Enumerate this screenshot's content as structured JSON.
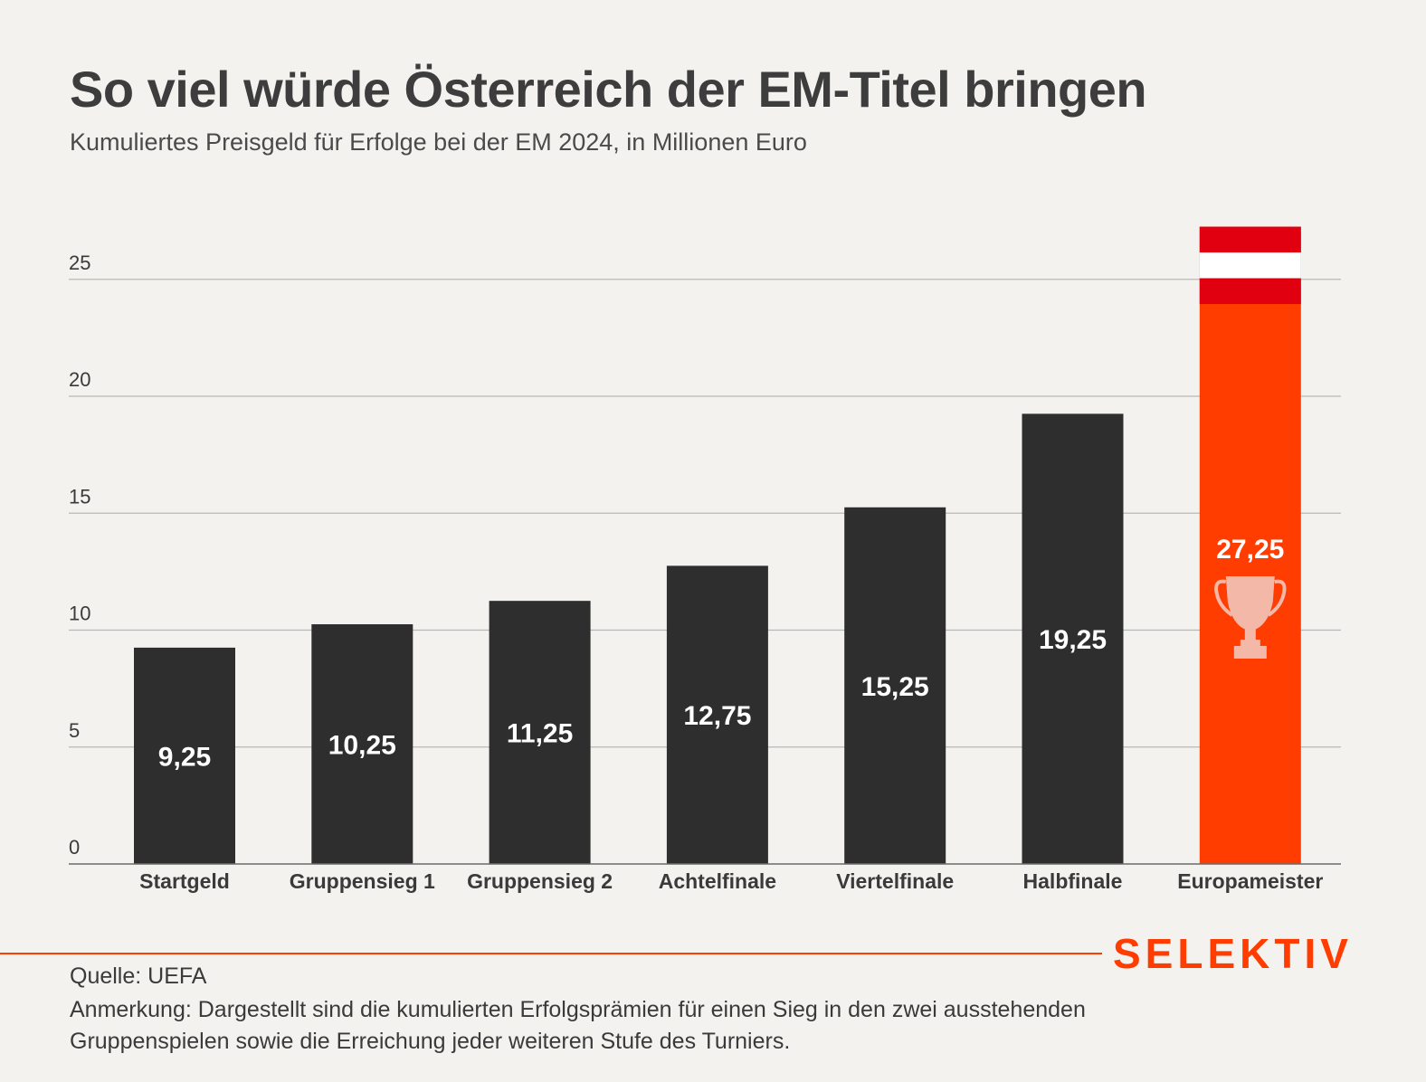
{
  "header": {
    "title": "So viel würde Österreich der EM-Titel bringen",
    "subtitle": "Kumuliertes Preisgeld für Erfolge bei der EM 2024, in Millionen Euro"
  },
  "chart_data": {
    "type": "bar",
    "title": "So viel würde Österreich der EM-Titel bringen",
    "subtitle": "Kumuliertes Preisgeld für Erfolge bei der EM 2024, in Millionen Euro",
    "categories": [
      "Startgeld",
      "Gruppensieg 1",
      "Gruppensieg 2",
      "Achtelfinale",
      "Viertelfinale",
      "Halbfinale",
      "Europameister"
    ],
    "values": [
      9.25,
      10.25,
      11.25,
      12.75,
      15.25,
      19.25,
      27.25
    ],
    "value_labels": [
      "9,25",
      "10,25",
      "11,25",
      "12,75",
      "15,25",
      "19,25",
      "27,25"
    ],
    "y_ticks": [
      0,
      5,
      10,
      15,
      20,
      25
    ],
    "ylim": [
      0,
      27.25
    ],
    "grid": true,
    "legend": "none",
    "highlight_index": 6,
    "colors": {
      "bar": "#2e2e2e",
      "highlight": "#ff3d00",
      "flag_red": "#e0000f",
      "flag_white": "#ffffff",
      "trophy": "#f4b8a8",
      "grid": "#b8b8b8",
      "axis": "#6b6b6b",
      "bar_label": "#ffffff"
    },
    "highlight_icon": "trophy-icon"
  },
  "footer": {
    "brand": "SELEKTIV",
    "brand_color": "#ff3d00",
    "source": "Quelle: UEFA",
    "note": "Anmerkung: Dargestellt sind die kumulierten Erfolgsprämien für einen Sieg in den zwei ausstehenden Gruppenspielen sowie die Erreichung jeder weiteren Stufe des Turniers."
  }
}
